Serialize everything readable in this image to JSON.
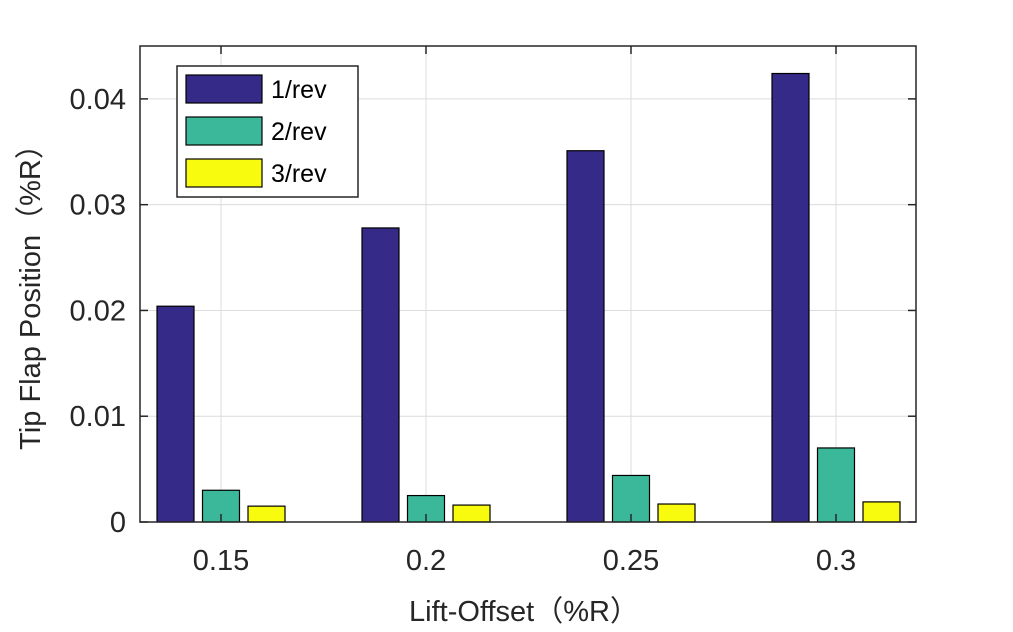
{
  "chart_data": {
    "type": "bar",
    "title": "",
    "xlabel": "Lift-Offset（%R）",
    "ylabel": "Tip Flap Position（%R）",
    "categories": [
      "0.15",
      "0.2",
      "0.25",
      "0.3"
    ],
    "series": [
      {
        "name": "1/rev",
        "color": "#352a87",
        "values": [
          0.0204,
          0.0278,
          0.0351,
          0.0424
        ]
      },
      {
        "name": "2/rev",
        "color": "#3bb89a",
        "values": [
          0.003,
          0.0025,
          0.0044,
          0.007
        ]
      },
      {
        "name": "3/rev",
        "color": "#f9fb0e",
        "values": [
          0.0015,
          0.0016,
          0.0017,
          0.0019
        ]
      }
    ],
    "ylim": [
      0,
      0.045
    ],
    "yticks": [
      0,
      0.01,
      0.02,
      0.03,
      0.04
    ],
    "ytick_labels": [
      "0",
      "0.01",
      "0.02",
      "0.03",
      "0.04"
    ],
    "grid": true,
    "legend": "top-left"
  }
}
